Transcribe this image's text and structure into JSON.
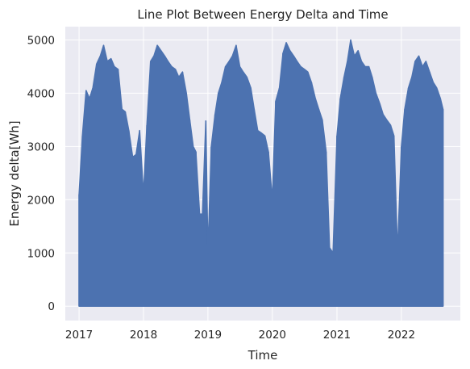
{
  "chart_data": {
    "type": "line",
    "title": "Line Plot Between Energy Delta and Time",
    "xlabel": "Time",
    "ylabel": "Energy delta[Wh]",
    "x_tick_labels": [
      "2017",
      "2018",
      "2019",
      "2020",
      "2021",
      "2022"
    ],
    "y_tick_labels": [
      "0",
      "1000",
      "2000",
      "3000",
      "4000",
      "5000"
    ],
    "y_ticks": [
      0,
      1000,
      2000,
      3000,
      4000,
      5000
    ],
    "xlim": [
      "2016-10-15",
      "2022-12-01"
    ],
    "ylim": [
      -270,
      5250
    ],
    "grid": true,
    "style": {
      "background": "#eaeaf2",
      "grid_color": "#ffffff",
      "series_color": "#4c72b0"
    },
    "series": [
      {
        "x": [
          "2017-01-01",
          "2017-01-20",
          "2017-02-10",
          "2017-03-01",
          "2017-03-20",
          "2017-04-10",
          "2017-05-01",
          "2017-05-20",
          "2017-06-10",
          "2017-07-01",
          "2017-07-20",
          "2017-08-10",
          "2017-09-01",
          "2017-09-20",
          "2017-10-10",
          "2017-11-01",
          "2017-11-20",
          "2017-12-10",
          "2018-01-01",
          "2018-01-20",
          "2018-02-10",
          "2018-03-01",
          "2018-03-20",
          "2018-04-10",
          "2018-05-01",
          "2018-05-20",
          "2018-06-10",
          "2018-07-01",
          "2018-07-20",
          "2018-08-10",
          "2018-09-01",
          "2018-09-20",
          "2018-10-10",
          "2018-10-25",
          "2018-11-15",
          "2018-12-01",
          "2018-12-20",
          "2019-01-01",
          "2019-01-20",
          "2019-02-10",
          "2019-03-01",
          "2019-03-20",
          "2019-04-10",
          "2019-05-01",
          "2019-05-20",
          "2019-06-10",
          "2019-07-01",
          "2019-07-20",
          "2019-08-10",
          "2019-09-01",
          "2019-09-20",
          "2019-10-10",
          "2019-11-01",
          "2019-11-20",
          "2019-12-10",
          "2020-01-01",
          "2020-01-20",
          "2020-02-10",
          "2020-03-01",
          "2020-03-20",
          "2020-04-10",
          "2020-05-01",
          "2020-05-20",
          "2020-06-10",
          "2020-07-01",
          "2020-07-20",
          "2020-08-10",
          "2020-09-01",
          "2020-09-20",
          "2020-10-10",
          "2020-11-01",
          "2020-11-20",
          "2020-12-10",
          "2021-01-01",
          "2021-01-20",
          "2021-02-10",
          "2021-03-01",
          "2021-03-20",
          "2021-04-10",
          "2021-05-01",
          "2021-05-20",
          "2021-06-10",
          "2021-07-01",
          "2021-07-20",
          "2021-08-10",
          "2021-09-01",
          "2021-09-20",
          "2021-10-10",
          "2021-11-01",
          "2021-11-20",
          "2021-12-10",
          "2022-01-01",
          "2022-01-20",
          "2022-02-10",
          "2022-03-01",
          "2022-03-20",
          "2022-04-10",
          "2022-05-01",
          "2022-05-20",
          "2022-06-10",
          "2022-07-01",
          "2022-07-20",
          "2022-08-10",
          "2022-08-25"
        ],
        "values": [
          2100,
          3200,
          4050,
          3900,
          4100,
          4550,
          4700,
          4900,
          4600,
          4650,
          4500,
          4450,
          3700,
          3650,
          3300,
          2800,
          2850,
          3300,
          2100,
          3400,
          4600,
          4700,
          4900,
          4800,
          4700,
          4600,
          4500,
          4450,
          4300,
          4400,
          4000,
          3500,
          3000,
          2900,
          1730,
          1730,
          3480,
          1000,
          3000,
          3600,
          4000,
          4200,
          4500,
          4600,
          4700,
          4900,
          4500,
          4400,
          4300,
          4100,
          3700,
          3300,
          3250,
          3200,
          2900,
          2000,
          3850,
          4100,
          4750,
          4950,
          4800,
          4700,
          4600,
          4500,
          4450,
          4400,
          4200,
          3900,
          3700,
          3500,
          2900,
          1100,
          1000,
          3200,
          3900,
          4300,
          4600,
          5000,
          4700,
          4800,
          4600,
          4500,
          4500,
          4300,
          4000,
          3800,
          3600,
          3500,
          3400,
          3200,
          1000,
          3000,
          3700,
          4100,
          4300,
          4600,
          4700,
          4500,
          4600,
          4400,
          4200,
          4100,
          3900,
          3700
        ],
        "min": 0
      }
    ]
  }
}
